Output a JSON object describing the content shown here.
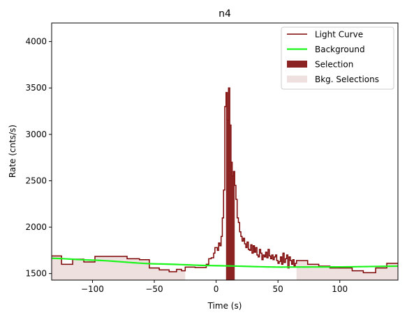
{
  "chart_data": {
    "type": "line",
    "title": "n4",
    "xlabel": "Time (s)",
    "ylabel": "Rate (cnts/s)",
    "xlim": [
      -133,
      147
    ],
    "ylim": [
      1430,
      4200
    ],
    "xticks": [
      -100,
      -50,
      0,
      50,
      100
    ],
    "xtick_labels": [
      "−100",
      "−50",
      "0",
      "50",
      "100"
    ],
    "yticks": [
      1500,
      2000,
      2500,
      3000,
      3500,
      4000
    ],
    "ytick_labels": [
      "1500",
      "2000",
      "2500",
      "3000",
      "3500",
      "4000"
    ],
    "legend_position": "top-right",
    "legend": [
      {
        "label": "Light Curve",
        "kind": "line",
        "color": "#7b0000"
      },
      {
        "label": "Background",
        "kind": "line",
        "color": "#1cf51c"
      },
      {
        "label": "Selection",
        "kind": "patch",
        "color": "#8b2323"
      },
      {
        "label": "Bkg. Selections",
        "kind": "patch",
        "color": "#efe0e0"
      }
    ],
    "light_curve": {
      "edges": [
        -133,
        -125,
        -116,
        -107,
        -98,
        -90,
        -80,
        -72,
        -62,
        -54,
        -46,
        -38,
        -32,
        -28,
        -25,
        -17,
        -8,
        -6,
        -4,
        -2,
        -1,
        1,
        2,
        3,
        4,
        5,
        6,
        7,
        8,
        9,
        10,
        11,
        12,
        13,
        14,
        15,
        16,
        17,
        18,
        19,
        20,
        21,
        22,
        23,
        24,
        25,
        26,
        27,
        28,
        29,
        30,
        31,
        32,
        33,
        34,
        35,
        36,
        37,
        38,
        39,
        40,
        41,
        42,
        43,
        44,
        45,
        46,
        47,
        48,
        49,
        50,
        51,
        52,
        53,
        54,
        55,
        56,
        57,
        58,
        59,
        60,
        61,
        62,
        63,
        64,
        65,
        74,
        83,
        92,
        101,
        110,
        119,
        129,
        138,
        147
      ],
      "rates": [
        1690,
        1600,
        1655,
        1625,
        1685,
        1685,
        1685,
        1660,
        1650,
        1560,
        1540,
        1520,
        1545,
        1530,
        1570,
        1565,
        1600,
        1660,
        1670,
        1720,
        1780,
        1750,
        1830,
        1800,
        1900,
        2100,
        2400,
        3300,
        3450,
        3150,
        3500,
        3100,
        2700,
        2550,
        2600,
        2450,
        2300,
        2100,
        2050,
        1950,
        1900,
        1850,
        1880,
        1820,
        1780,
        1840,
        1760,
        1750,
        1810,
        1720,
        1800,
        1730,
        1780,
        1700,
        1680,
        1760,
        1720,
        1650,
        1700,
        1680,
        1730,
        1670,
        1760,
        1690,
        1660,
        1700,
        1650,
        1680,
        1700,
        1640,
        1610,
        1630,
        1680,
        1600,
        1720,
        1620,
        1660,
        1700,
        1560,
        1680,
        1640,
        1600,
        1650,
        1580,
        1610,
        1640,
        1600,
        1580,
        1560,
        1560,
        1530,
        1510,
        1560,
        1610
      ],
      "color": "#7b0000"
    },
    "background": {
      "x": [
        -133,
        -100,
        -50,
        0,
        50,
        100,
        147
      ],
      "y": [
        1665,
        1645,
        1605,
        1585,
        1570,
        1572,
        1580
      ],
      "color": "#1cf51c"
    },
    "selection": {
      "range": [
        8,
        15
      ],
      "color": "#8b2323"
    },
    "bkg_selections": {
      "ranges": [
        [
          -133,
          -25
        ],
        [
          65,
          147
        ]
      ],
      "color": "#efe0e0"
    }
  }
}
